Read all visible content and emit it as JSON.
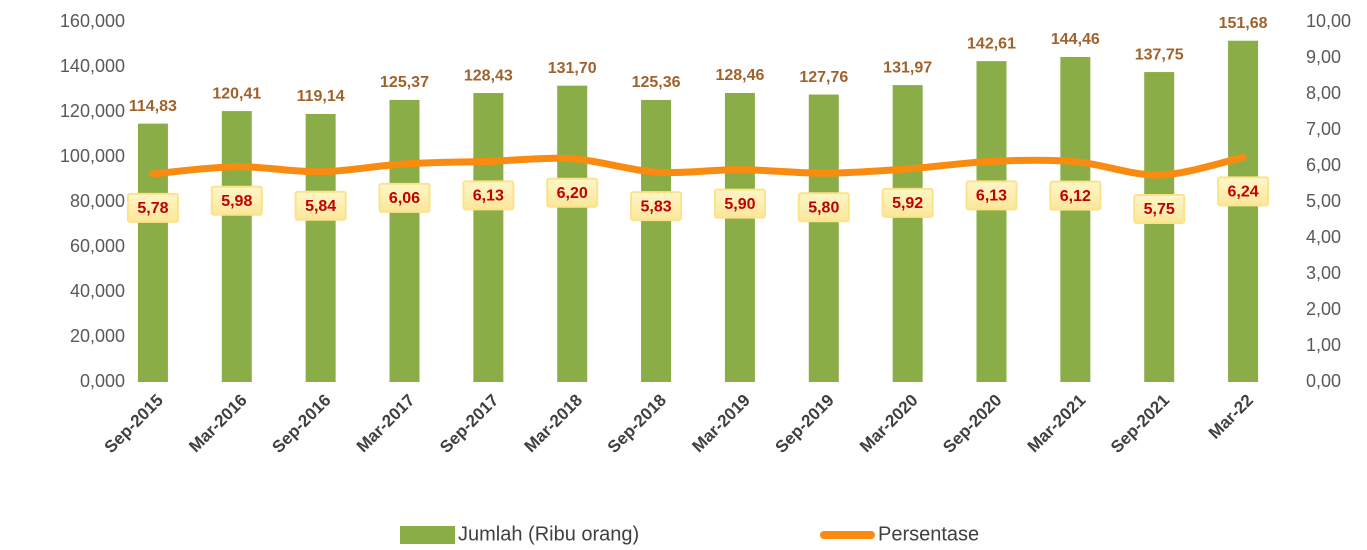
{
  "chart_data": {
    "type": "bar",
    "categories": [
      "Sep-2015",
      "Mar-2016",
      "Sep-2016",
      "Mar-2017",
      "Sep-2017",
      "Mar-2018",
      "Sep-2018",
      "Mar-2019",
      "Sep-2019",
      "Mar-2020",
      "Sep-2020",
      "Mar-2021",
      "Sep-2021",
      "Mar-22"
    ],
    "series": [
      {
        "name": "Jumlah (Ribu orang)",
        "type": "bar",
        "color": "#8bad47",
        "values": [
          114.83,
          120.41,
          119.14,
          125.37,
          128.43,
          131.7,
          125.36,
          128.46,
          127.76,
          131.97,
          142.61,
          144.46,
          137.75,
          151.68
        ],
        "value_labels": [
          "114,83",
          "120,41",
          "119,14",
          "125,37",
          "128,43",
          "131,70",
          "125,36",
          "128,46",
          "127,76",
          "131,97",
          "142,61",
          "144,46",
          "137,75",
          "151,68"
        ]
      },
      {
        "name": "Persentase",
        "type": "line",
        "axis": "y2",
        "color": "#f98c10",
        "values": [
          5.78,
          5.98,
          5.84,
          6.06,
          6.13,
          6.2,
          5.83,
          5.9,
          5.8,
          5.92,
          6.13,
          6.12,
          5.75,
          6.24
        ],
        "value_labels": [
          "5,78",
          "5,98",
          "5,84",
          "6,06",
          "6,13",
          "6,20",
          "5,83",
          "5,90",
          "5,80",
          "5,92",
          "6,13",
          "6,12",
          "5,75",
          "6,24"
        ]
      }
    ],
    "ylim": [
      0,
      160
    ],
    "yticks": [
      {
        "value": 0,
        "label": "0,000"
      },
      {
        "value": 20,
        "label": "20,000"
      },
      {
        "value": 40,
        "label": "40,000"
      },
      {
        "value": 60,
        "label": "60,000"
      },
      {
        "value": 80,
        "label": "80,000"
      },
      {
        "value": 100,
        "label": "100,000"
      },
      {
        "value": 120,
        "label": "120,000"
      },
      {
        "value": 140,
        "label": "140,000"
      },
      {
        "value": 160,
        "label": "160,000"
      }
    ],
    "y2lim": [
      0,
      10
    ],
    "y2ticks": [
      {
        "value": 0,
        "label": "0,00"
      },
      {
        "value": 1,
        "label": "1,00"
      },
      {
        "value": 2,
        "label": "2,00"
      },
      {
        "value": 3,
        "label": "3,00"
      },
      {
        "value": 4,
        "label": "4,00"
      },
      {
        "value": 5,
        "label": "5,00"
      },
      {
        "value": 6,
        "label": "6,00"
      },
      {
        "value": 7,
        "label": "7,00"
      },
      {
        "value": 8,
        "label": "8,00"
      },
      {
        "value": 9,
        "label": "9,00"
      },
      {
        "value": 10,
        "label": "10,00"
      }
    ],
    "legend": "bottom"
  }
}
